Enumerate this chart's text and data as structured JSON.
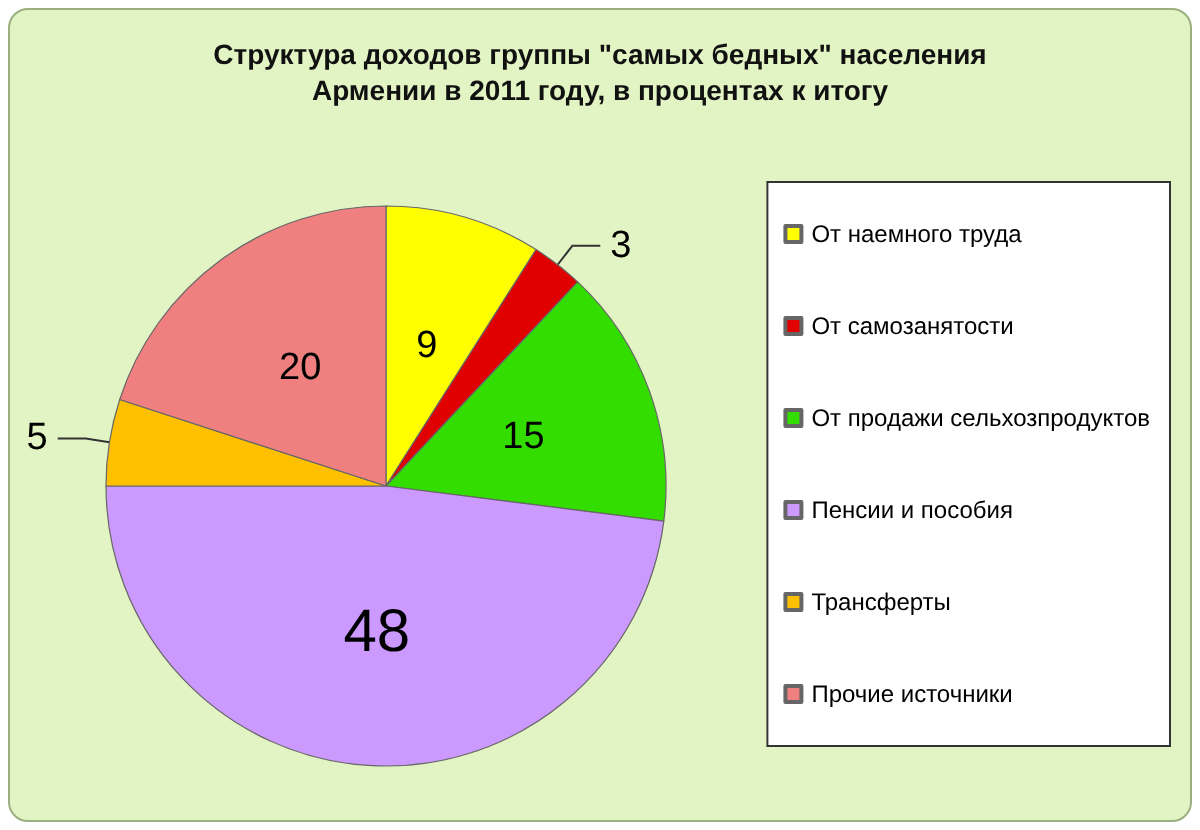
{
  "chart_data": {
    "type": "pie",
    "title": "Структура доходов группы \"самых бедных\" населения\nАрмении в 2011 году, в процентах к итогу",
    "categories": [
      "От наемного труда",
      "От самозанятости",
      "От продажи сельхозпродуктов",
      "Пенсии и пособия",
      "Трансферты",
      "Прочие источники"
    ],
    "values": [
      9,
      3,
      15,
      48,
      5,
      20
    ],
    "colors": [
      "#ffff00",
      "#e00000",
      "#33dd00",
      "#cc99ff",
      "#ffc000",
      "#f08080"
    ],
    "data_labels": true,
    "legend": "right"
  }
}
